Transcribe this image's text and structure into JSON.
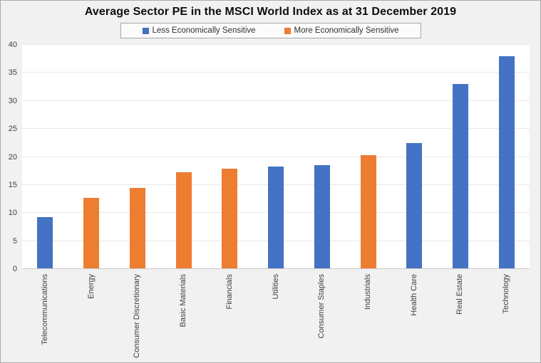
{
  "colors": {
    "background": "#f1f1f2",
    "frame_border": "#ababab",
    "plot_background": "#ffffff",
    "gridline": "#e8e8e8",
    "axis_line": "#c9c9c9",
    "title_text": "#0d0d0d",
    "tick_text": "#3f3f3f",
    "series_less": "#4472C4",
    "series_more": "#ED7D31"
  },
  "chart_data": {
    "type": "bar",
    "title": "Average Sector PE in the MSCI World Index as at 31 December 2019",
    "xlabel": "",
    "ylabel": "",
    "ylim": [
      0,
      40
    ],
    "yticks": [
      0,
      5,
      10,
      15,
      20,
      25,
      30,
      35,
      40
    ],
    "grid": true,
    "legend_position": "top-center",
    "legend": [
      {
        "name": "Less Economically Sensitive",
        "color": "#4472C4"
      },
      {
        "name": "More Economically Sensitive",
        "color": "#ED7D31"
      }
    ],
    "categories": [
      "Telecommunications",
      "Energy",
      "Consumer Discretionary",
      "Basic Materials",
      "Financials",
      "Utilities",
      "Consumer Staples",
      "Industrials",
      "Health Care",
      "Real Estate",
      "Technology"
    ],
    "values": [
      9.1,
      12.6,
      14.3,
      17.2,
      17.8,
      18.2,
      18.4,
      20.2,
      22.3,
      32.9,
      37.8
    ],
    "sensitivity": [
      "Less Economically Sensitive",
      "More Economically Sensitive",
      "More Economically Sensitive",
      "More Economically Sensitive",
      "More Economically Sensitive",
      "Less Economically Sensitive",
      "Less Economically Sensitive",
      "More Economically Sensitive",
      "Less Economically Sensitive",
      "Less Economically Sensitive",
      "Less Economically Sensitive"
    ]
  }
}
